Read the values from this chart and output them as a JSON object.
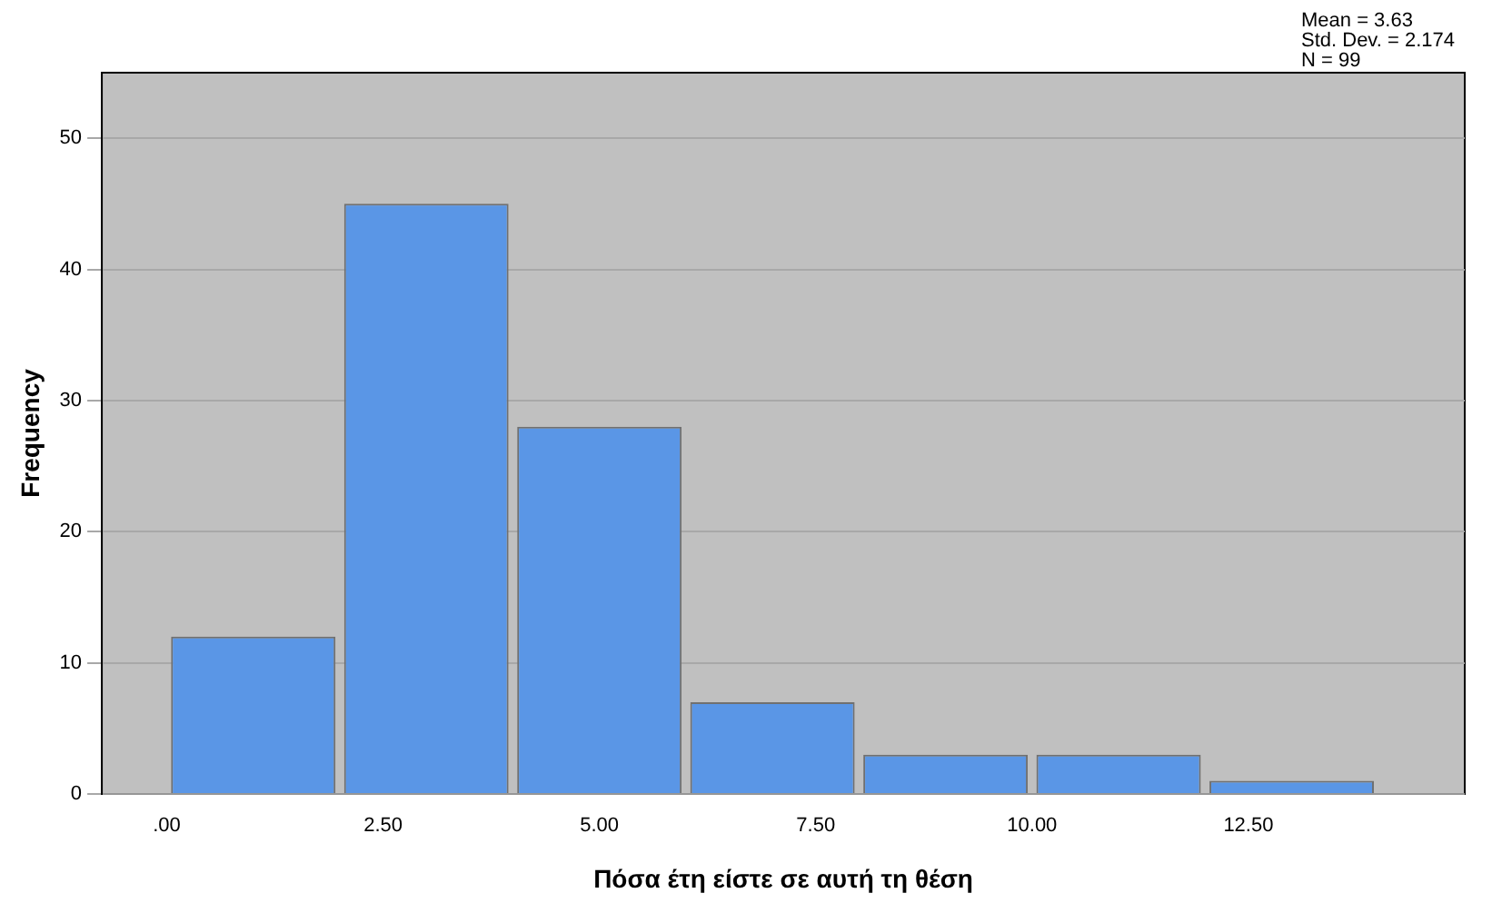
{
  "chart_data": {
    "type": "histogram",
    "bins": [
      0,
      2,
      4,
      6,
      8,
      10,
      12,
      14
    ],
    "values": [
      12,
      45,
      28,
      7,
      3,
      3,
      1
    ],
    "color": "#5a96e6",
    "xlabel": "Πόσα έτη είστε σε αυτή τη θέση",
    "ylabel": "Frequency",
    "xlim": [
      -0.75,
      15
    ],
    "xticks": [
      {
        "value": 0,
        "label": ".00"
      },
      {
        "value": 2.5,
        "label": "2.50"
      },
      {
        "value": 5,
        "label": "5.00"
      },
      {
        "value": 7.5,
        "label": "7.50"
      },
      {
        "value": 10,
        "label": "10.00"
      },
      {
        "value": 12.5,
        "label": "12.50"
      }
    ],
    "ylim": [
      0,
      55
    ],
    "yticks": [
      0,
      10,
      20,
      30,
      40,
      50
    ],
    "grid": "y",
    "legend": false,
    "annotations": [
      "Mean = 3.63",
      "Std. Dev. = 2.174",
      "N = 99"
    ]
  }
}
